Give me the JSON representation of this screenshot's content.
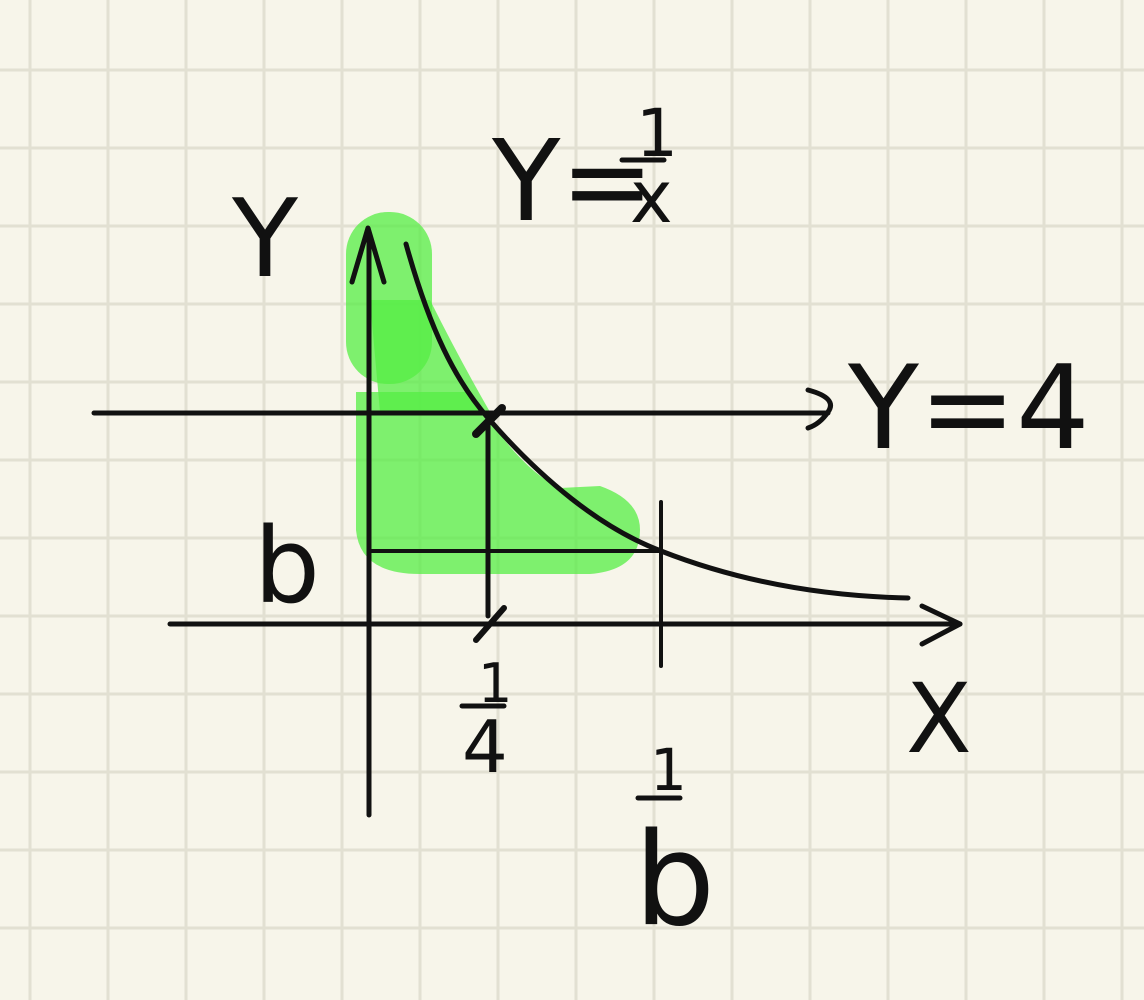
{
  "paper": {
    "background": "#f7f5ea",
    "grid_color": "#e2e0d2"
  },
  "highlight_color": "#55ee44",
  "ink_color": "#111111",
  "labels": {
    "y_axis": "Y",
    "x_axis": "X",
    "curve_lhs": "Y=",
    "curve_num": "1",
    "curve_den": "x",
    "line_eq": "Y=4",
    "b_value": "b",
    "tick_a_num": "1",
    "tick_a_den": "4",
    "tick_b_num": "1",
    "tick_b_den": "b"
  }
}
